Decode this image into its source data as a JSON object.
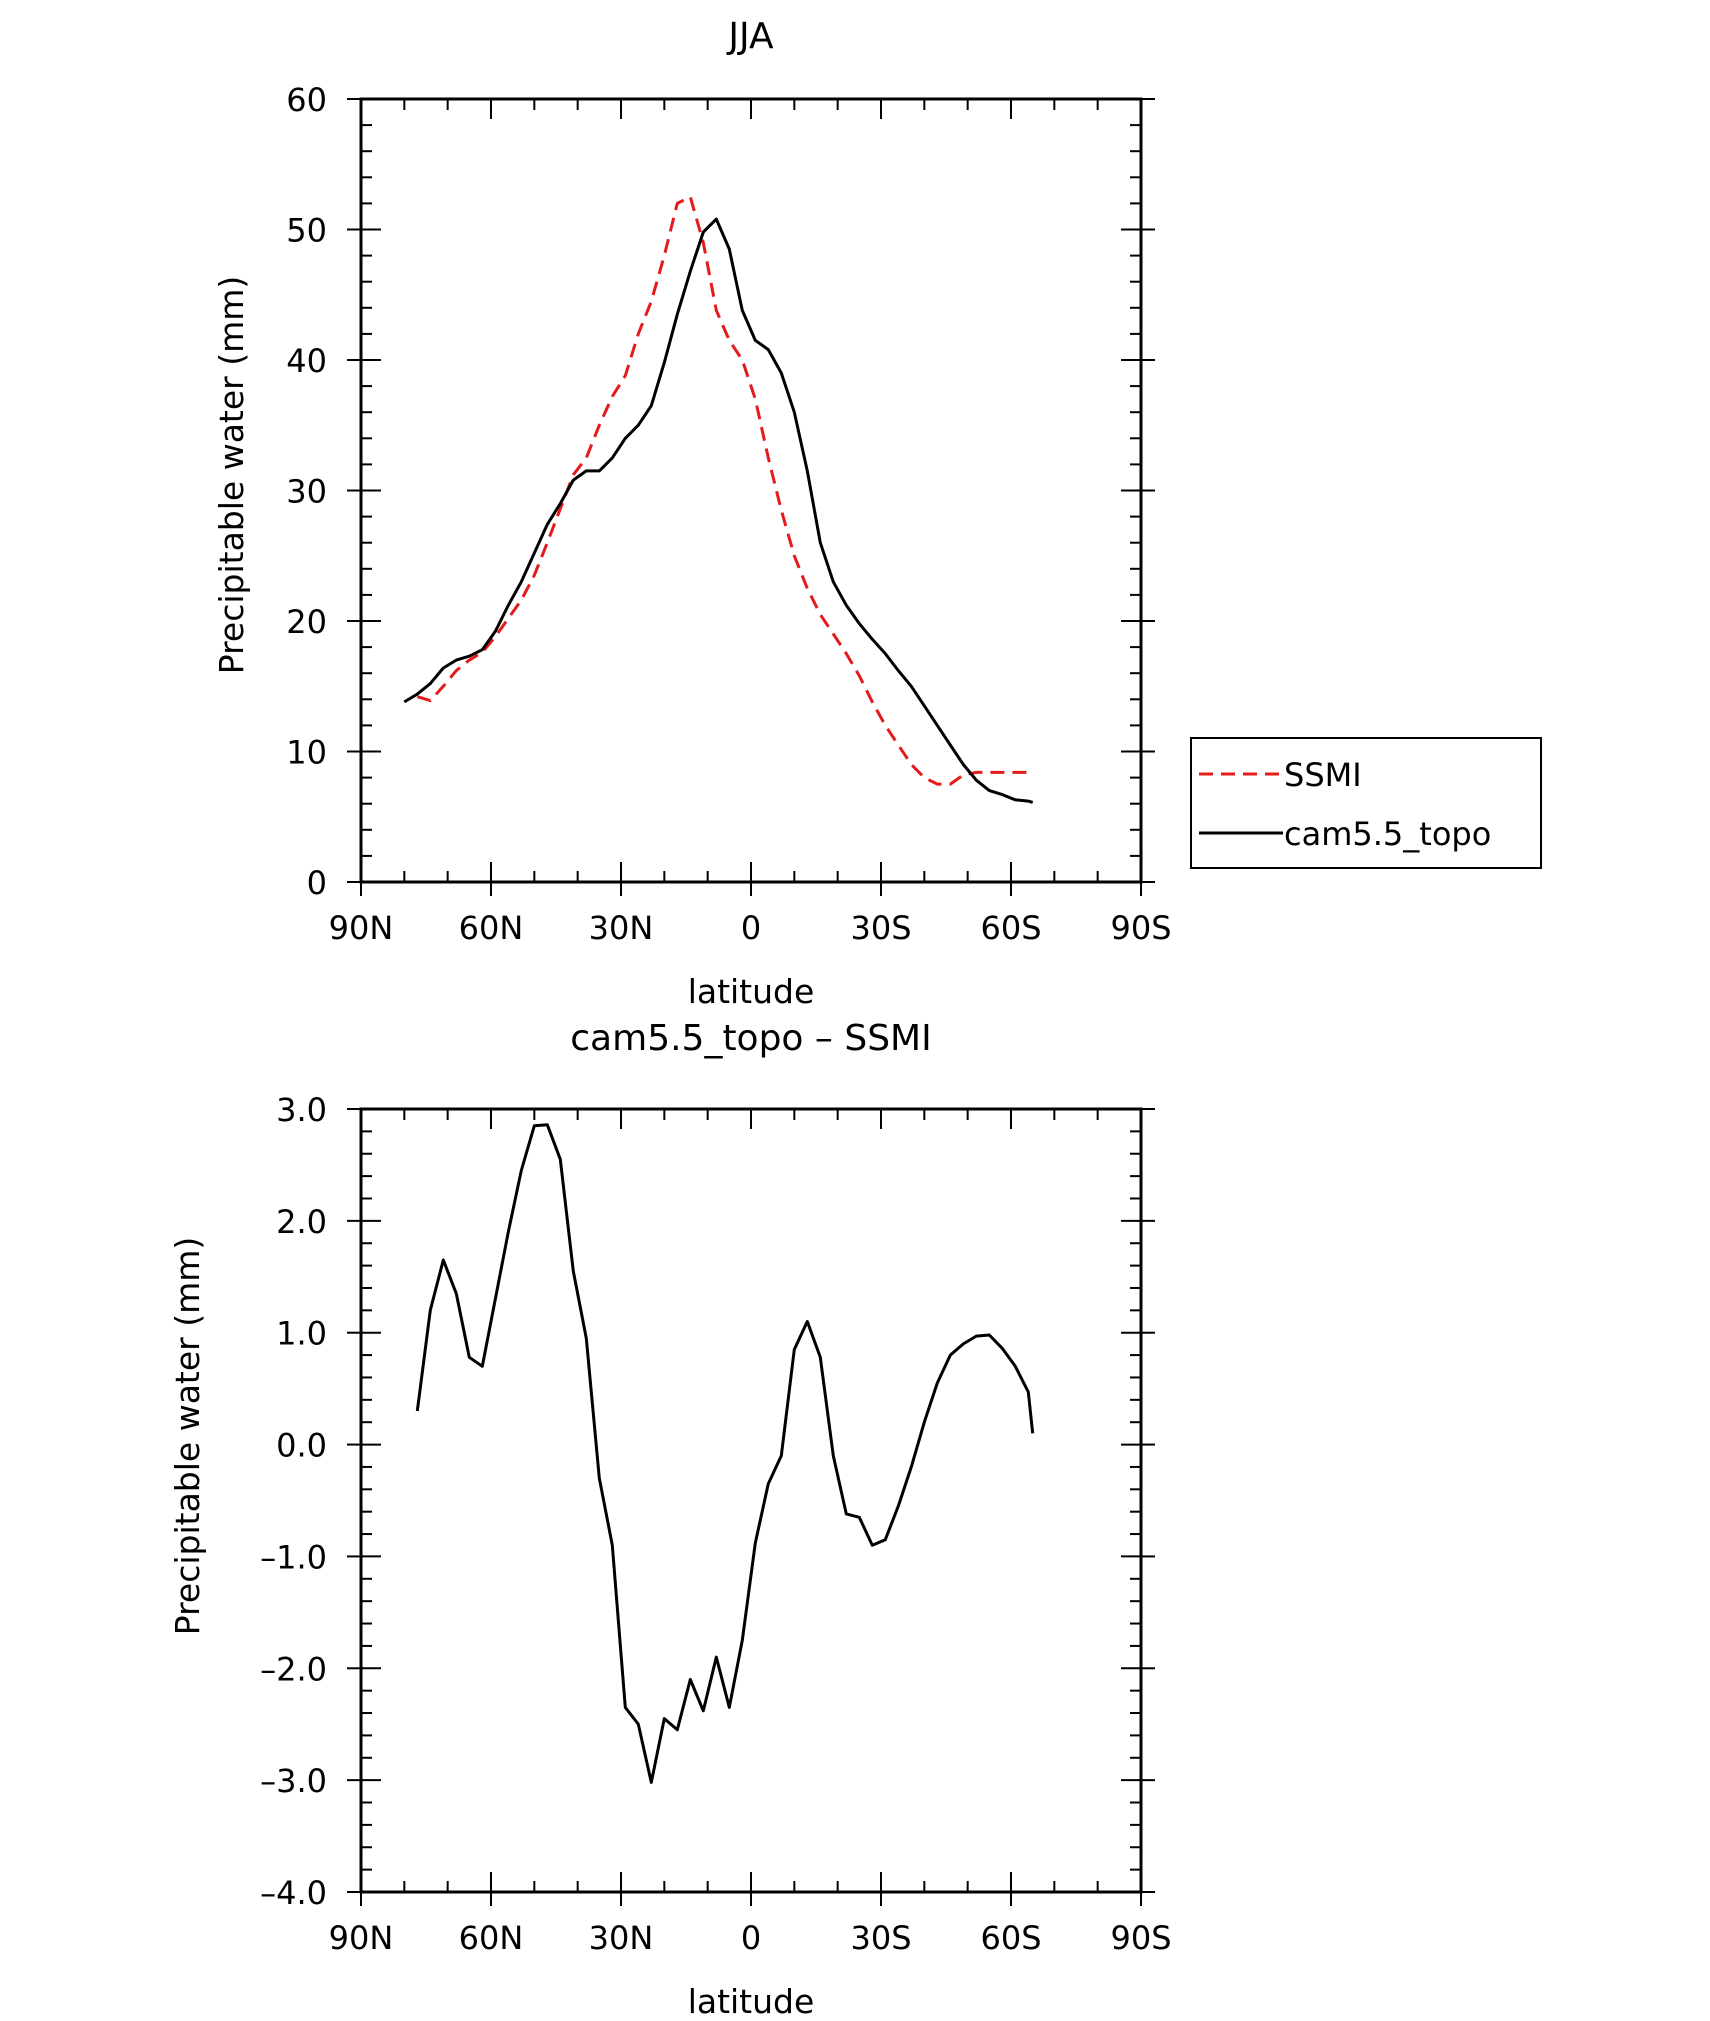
{
  "chart_data": [
    {
      "type": "line",
      "title": "JJA",
      "xlabel": "latitude",
      "ylabel": "Precipitable water (mm)",
      "xlim": [
        90,
        -90
      ],
      "ylim": [
        0,
        60
      ],
      "xticks": [
        {
          "value": 90,
          "label": "90N"
        },
        {
          "value": 60,
          "label": "60N"
        },
        {
          "value": 30,
          "label": "30N"
        },
        {
          "value": 0,
          "label": "0"
        },
        {
          "value": -30,
          "label": "30S"
        },
        {
          "value": -60,
          "label": "60S"
        },
        {
          "value": -90,
          "label": "90S"
        }
      ],
      "yticks": [
        {
          "value": 0,
          "label": "0"
        },
        {
          "value": 10,
          "label": "10"
        },
        {
          "value": 20,
          "label": "20"
        },
        {
          "value": 30,
          "label": "30"
        },
        {
          "value": 40,
          "label": "40"
        },
        {
          "value": 50,
          "label": "50"
        },
        {
          "value": 60,
          "label": "60"
        }
      ],
      "grid": false,
      "legend_position": "right",
      "legend": [
        {
          "name": "SSMI",
          "color": "#e41a1c",
          "style": "dashed"
        },
        {
          "name": "cam5.5_topo",
          "color": "#000000",
          "style": "solid"
        }
      ],
      "series": [
        {
          "name": "SSMI",
          "color": "#e41a1c",
          "style": "dashed",
          "x": [
            77,
            74,
            71,
            68,
            65,
            62,
            59,
            56,
            53,
            50,
            47,
            44,
            41,
            38,
            35,
            32,
            29,
            26,
            23,
            20,
            17,
            14,
            11,
            8,
            5,
            2,
            -1,
            -4,
            -7,
            -10,
            -13,
            -16,
            -19,
            -22,
            -25,
            -28,
            -31,
            -34,
            -37,
            -40,
            -43,
            -46,
            -49,
            -52,
            -55,
            -58,
            -61,
            -64,
            -65
          ],
          "y": [
            14.2,
            13.9,
            15.0,
            16.2,
            17.0,
            17.6,
            18.8,
            20.2,
            21.6,
            23.5,
            26.0,
            28.6,
            31.2,
            32.5,
            35.0,
            37.2,
            38.8,
            42.0,
            44.5,
            48.0,
            52.0,
            52.5,
            49.0,
            43.8,
            41.5,
            40.0,
            37.0,
            32.5,
            28.5,
            25.0,
            22.5,
            20.5,
            19.0,
            17.5,
            15.8,
            13.8,
            12.0,
            10.5,
            9.0,
            8.0,
            7.5,
            7.5,
            8.2,
            8.4,
            8.4,
            8.4,
            8.4,
            8.4,
            8.4
          ]
        },
        {
          "name": "cam5.5_topo",
          "color": "#000000",
          "style": "solid",
          "x": [
            80,
            77,
            74,
            71,
            68,
            65,
            62,
            59,
            56,
            53,
            50,
            47,
            44,
            41,
            38,
            35,
            32,
            29,
            26,
            23,
            20,
            17,
            14,
            11,
            8,
            5,
            2,
            -1,
            -4,
            -7,
            -10,
            -13,
            -16,
            -19,
            -22,
            -25,
            -28,
            -31,
            -34,
            -37,
            -40,
            -43,
            -46,
            -49,
            -52,
            -55,
            -58,
            -61,
            -64,
            -65
          ],
          "y": [
            13.8,
            14.4,
            15.2,
            16.4,
            17.0,
            17.3,
            17.8,
            19.2,
            21.2,
            23.0,
            25.2,
            27.4,
            29.0,
            30.8,
            31.5,
            31.5,
            32.5,
            34.0,
            35.0,
            36.5,
            39.8,
            43.5,
            46.8,
            49.8,
            50.8,
            48.5,
            43.8,
            41.5,
            40.8,
            39.0,
            36.0,
            31.5,
            26.0,
            23.0,
            21.2,
            19.8,
            18.6,
            17.5,
            16.2,
            15.0,
            13.5,
            12.0,
            10.5,
            9.0,
            7.8,
            7.0,
            6.7,
            6.3,
            6.2,
            6.1
          ]
        }
      ]
    },
    {
      "type": "line",
      "title": "cam5.5_topo – SSMI",
      "xlabel": "latitude",
      "ylabel": "Precipitable water (mm)",
      "xlim": [
        90,
        -90
      ],
      "ylim": [
        -4.0,
        3.0
      ],
      "xticks": [
        {
          "value": 90,
          "label": "90N"
        },
        {
          "value": 60,
          "label": "60N"
        },
        {
          "value": 30,
          "label": "30N"
        },
        {
          "value": 0,
          "label": "0"
        },
        {
          "value": -30,
          "label": "30S"
        },
        {
          "value": -60,
          "label": "60S"
        },
        {
          "value": -90,
          "label": "90S"
        }
      ],
      "yticks": [
        {
          "value": 3.0,
          "label": "3.0"
        },
        {
          "value": 2.0,
          "label": "2.0"
        },
        {
          "value": 1.0,
          "label": "1.0"
        },
        {
          "value": 0.0,
          "label": "0.0"
        },
        {
          "value": -1.0,
          "label": "–1.0"
        },
        {
          "value": -2.0,
          "label": "–2.0"
        },
        {
          "value": -3.0,
          "label": "–3.0"
        },
        {
          "value": -4.0,
          "label": "–4.0"
        }
      ],
      "grid": false,
      "series": [
        {
          "name": "",
          "color": "#000000",
          "style": "solid",
          "x": [
            77,
            74,
            71,
            68,
            65,
            62,
            59,
            56,
            53,
            50,
            47,
            44,
            41,
            38,
            35,
            32,
            29,
            26,
            23,
            20,
            17,
            14,
            11,
            8,
            5,
            2,
            -1,
            -4,
            -7,
            -10,
            -13,
            -16,
            -19,
            -22,
            -25,
            -28,
            -31,
            -34,
            -37,
            -40,
            -43,
            -46,
            -49,
            -52,
            -55,
            -58,
            -61,
            -64,
            -65
          ],
          "y": [
            0.3,
            1.2,
            1.65,
            1.35,
            0.78,
            0.7,
            1.3,
            1.9,
            2.45,
            2.85,
            2.86,
            2.55,
            1.55,
            0.95,
            -0.3,
            -0.9,
            -2.35,
            -2.5,
            -3.02,
            -2.45,
            -2.55,
            -2.1,
            -2.38,
            -1.9,
            -2.35,
            -1.75,
            -0.88,
            -0.35,
            -0.1,
            0.85,
            1.1,
            0.78,
            -0.1,
            -0.62,
            -0.65,
            -0.9,
            -0.85,
            -0.55,
            -0.2,
            0.2,
            0.55,
            0.8,
            0.9,
            0.97,
            0.98,
            0.86,
            0.7,
            0.47,
            0.1
          ]
        }
      ]
    }
  ]
}
